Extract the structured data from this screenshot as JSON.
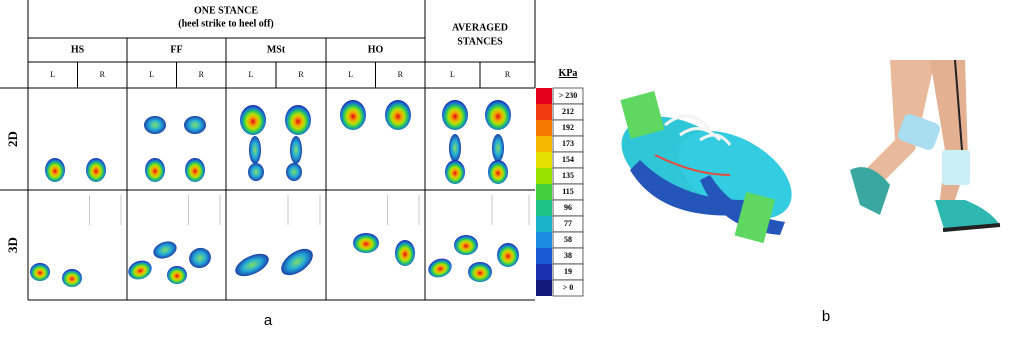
{
  "panel_a": {
    "header": {
      "title": "ONE STANCE",
      "subtitle": "(heel strike to heel off)",
      "averaged": [
        "AVERAGED",
        "STANCES"
      ]
    },
    "phases": [
      "HS",
      "FF",
      "MSt",
      "HO"
    ],
    "sides": [
      "L",
      "R"
    ],
    "rows": [
      "2D",
      "3D"
    ],
    "scale": {
      "unit": "KPa",
      "labels": [
        "> 230",
        "212",
        "192",
        "173",
        "154",
        "135",
        "115",
        "96",
        "77",
        "58",
        "38",
        "19",
        "> 0"
      ]
    },
    "label": "a"
  },
  "panel_b": {
    "label": "b"
  }
}
